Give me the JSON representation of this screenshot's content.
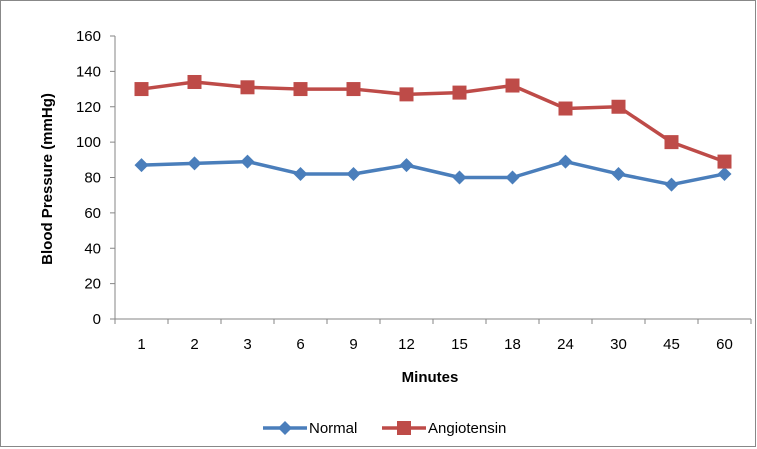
{
  "chart_data": {
    "type": "line",
    "title": "",
    "xlabel": "Minutes",
    "ylabel": "Blood Pressure (mmHg)",
    "categories": [
      "1",
      "2",
      "3",
      "6",
      "9",
      "12",
      "15",
      "18",
      "24",
      "30",
      "45",
      "60"
    ],
    "ylim": [
      0,
      160
    ],
    "yticks": [
      0,
      20,
      40,
      60,
      80,
      100,
      120,
      140,
      160
    ],
    "grid": false,
    "legend_position": "bottom",
    "series": [
      {
        "name": "Normal",
        "color": "#4A7EBB",
        "marker": "diamond",
        "values": [
          87,
          88,
          89,
          82,
          82,
          87,
          80,
          80,
          89,
          82,
          76,
          82
        ]
      },
      {
        "name": "Angiotensin",
        "color": "#BE4B48",
        "marker": "square",
        "values": [
          130,
          134,
          131,
          130,
          130,
          127,
          128,
          132,
          119,
          120,
          100,
          89
        ]
      }
    ]
  }
}
